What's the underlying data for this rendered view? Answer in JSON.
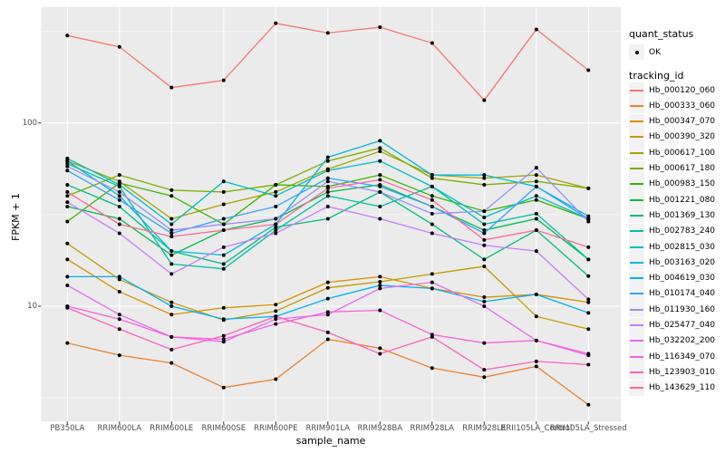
{
  "figure": {
    "y_axis_title": "FPKM + 1",
    "x_axis_title": "sample_name",
    "legend": {
      "quant_title": "quant_status",
      "quant_items": [
        {
          "label": "OK",
          "marker": "black-point"
        }
      ],
      "tracking_title": "tracking_id"
    }
  },
  "chart_data": {
    "type": "line",
    "title": "",
    "xlabel": "sample_name",
    "ylabel": "FPKM + 1",
    "y_scale": "log10",
    "ylim": [
      2.35,
      430
    ],
    "y_major_ticks": [
      100,
      10
    ],
    "y_tick_labels": [
      "100",
      "10"
    ],
    "y_minor_ticks": [
      316.2,
      31.62,
      3.162
    ],
    "grid": true,
    "legend_position": "right",
    "panel_bg": "#ebebeb",
    "gridline_color": "#ffffff",
    "point_color": "#000000",
    "categories": [
      "PB350LA",
      "RRIM600LA",
      "RRIM600LE",
      "RRIM600SE",
      "RRIM600PE",
      "RRIM901LA",
      "RRIM928BA",
      "RRIM928LA",
      "RRIM928LE",
      "RRII105LA_Control",
      "RRII105LA_Stressed"
    ],
    "series": [
      {
        "name": "Hb_000120_060",
        "color": "#F8766D",
        "values": [
          300,
          260,
          156,
          171,
          350,
          310,
          333,
          273,
          133,
          324,
          194
        ]
      },
      {
        "name": "Hb_000333_060",
        "color": "#EA8331",
        "values": [
          6.3,
          5.4,
          4.9,
          3.6,
          4.0,
          6.6,
          5.9,
          4.6,
          4.1,
          4.7,
          2.9
        ]
      },
      {
        "name": "Hb_000347_070",
        "color": "#D89000",
        "values": [
          18,
          12,
          9.0,
          9.8,
          10.2,
          13.5,
          14.5,
          12.5,
          11.2,
          11.6,
          10.5
        ]
      },
      {
        "name": "Hb_000390_320",
        "color": "#C09B00",
        "values": [
          22,
          14,
          10.5,
          8.4,
          9.4,
          12.6,
          13.6,
          15,
          16.5,
          8.8,
          7.5
        ]
      },
      {
        "name": "Hb_000617_100",
        "color": "#A3A500",
        "values": [
          62,
          48,
          30,
          36,
          42,
          56,
          70,
          52,
          50,
          52,
          44
        ]
      },
      {
        "name": "Hb_000617_180",
        "color": "#7CAE00",
        "values": [
          40,
          52,
          43,
          42,
          46,
          62,
          73,
          50,
          46,
          48,
          44
        ]
      },
      {
        "name": "Hb_000983_150",
        "color": "#39B600",
        "values": [
          29,
          47,
          40,
          28,
          46,
          45,
          52,
          40,
          33,
          38,
          30
        ]
      },
      {
        "name": "Hb_001221_080",
        "color": "#00BB4E",
        "values": [
          35,
          30,
          19,
          26,
          30,
          42,
          46,
          35,
          26,
          30,
          18
        ]
      },
      {
        "name": "Hb_001369_130",
        "color": "#00BF7D",
        "values": [
          46,
          35,
          20,
          17,
          27,
          30,
          42,
          28,
          18,
          26,
          14.6
        ]
      },
      {
        "name": "Hb_002783_240",
        "color": "#00C1A3",
        "values": [
          60,
          45,
          17,
          16,
          26,
          40,
          35,
          45,
          28,
          32,
          18
        ]
      },
      {
        "name": "Hb_002815_030",
        "color": "#00BFC4",
        "values": [
          64,
          46,
          28,
          48,
          40,
          55,
          62,
          45,
          30.5,
          40,
          30
        ]
      },
      {
        "name": "Hb_003163_020",
        "color": "#00BAE0",
        "values": [
          62,
          40,
          20,
          19,
          28,
          65,
          80,
          52,
          52,
          45,
          31
        ]
      },
      {
        "name": "Hb_004619_030",
        "color": "#00B0F6",
        "values": [
          14.5,
          14.5,
          10,
          8.5,
          8.8,
          11,
          13,
          12.5,
          10.6,
          11.6,
          9.2
        ]
      },
      {
        "name": "Hb_010174_040",
        "color": "#35A2FF",
        "values": [
          55,
          38,
          25,
          30,
          35,
          50,
          45,
          35,
          25,
          45,
          30
        ]
      },
      {
        "name": "Hb_011930_160",
        "color": "#9590FF",
        "values": [
          58,
          42,
          26,
          28,
          30,
          48,
          42,
          32,
          33,
          57,
          29
        ]
      },
      {
        "name": "Hb_025477_040",
        "color": "#C77CFF",
        "values": [
          37,
          25,
          15,
          21,
          25,
          35,
          30,
          25,
          21.5,
          20,
          10.9
        ]
      },
      {
        "name": "Hb_032202_200",
        "color": "#E76BF3",
        "values": [
          13,
          9,
          6.8,
          6.4,
          8.5,
          9,
          12.5,
          13.5,
          10,
          6.5,
          5.4
        ]
      },
      {
        "name": "Hb_116349_070",
        "color": "#FA62DB",
        "values": [
          10,
          8.5,
          6.8,
          6.6,
          8,
          9.3,
          9.5,
          7,
          6.3,
          6.5,
          5.5
        ]
      },
      {
        "name": "Hb_123903_010",
        "color": "#FF62BC",
        "values": [
          9.8,
          7.5,
          5.8,
          6.9,
          8.8,
          7.2,
          5.5,
          6.8,
          4.5,
          5,
          4.8
        ]
      },
      {
        "name": "Hb_143629_110",
        "color": "#FF6A98",
        "values": [
          42,
          28,
          24,
          26,
          28,
          44,
          49,
          38,
          23,
          26,
          21
        ]
      }
    ]
  }
}
